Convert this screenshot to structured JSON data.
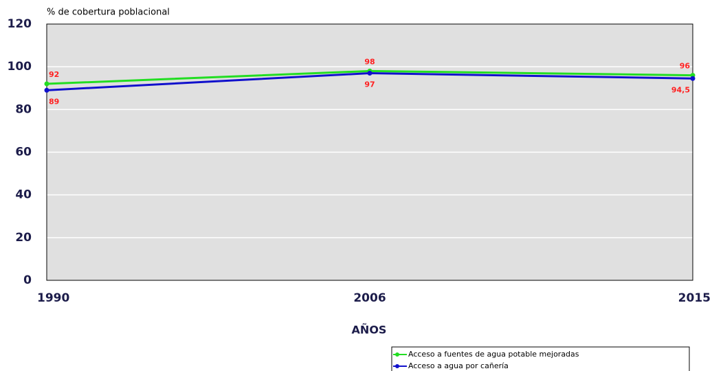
{
  "chart_data": {
    "type": "line",
    "y_axis_label": "% de cobertura poblacional",
    "x_axis_label": "AÑOS",
    "categories": [
      "1990",
      "2006",
      "2015"
    ],
    "series": [
      {
        "name": "Acceso a fuentes de agua potable mejoradas",
        "color": "#22dd22",
        "values": [
          92,
          98,
          96
        ]
      },
      {
        "name": "Acceso a agua por cañería",
        "color": "#1010cc",
        "values": [
          89,
          97,
          94.5
        ],
        "value_labels": [
          "89",
          "97",
          "94,5"
        ]
      }
    ],
    "ylim": [
      0,
      120
    ],
    "yticks": [
      0,
      20,
      40,
      60,
      80,
      100,
      120
    ],
    "grid": true,
    "legend": "bottom-right"
  }
}
